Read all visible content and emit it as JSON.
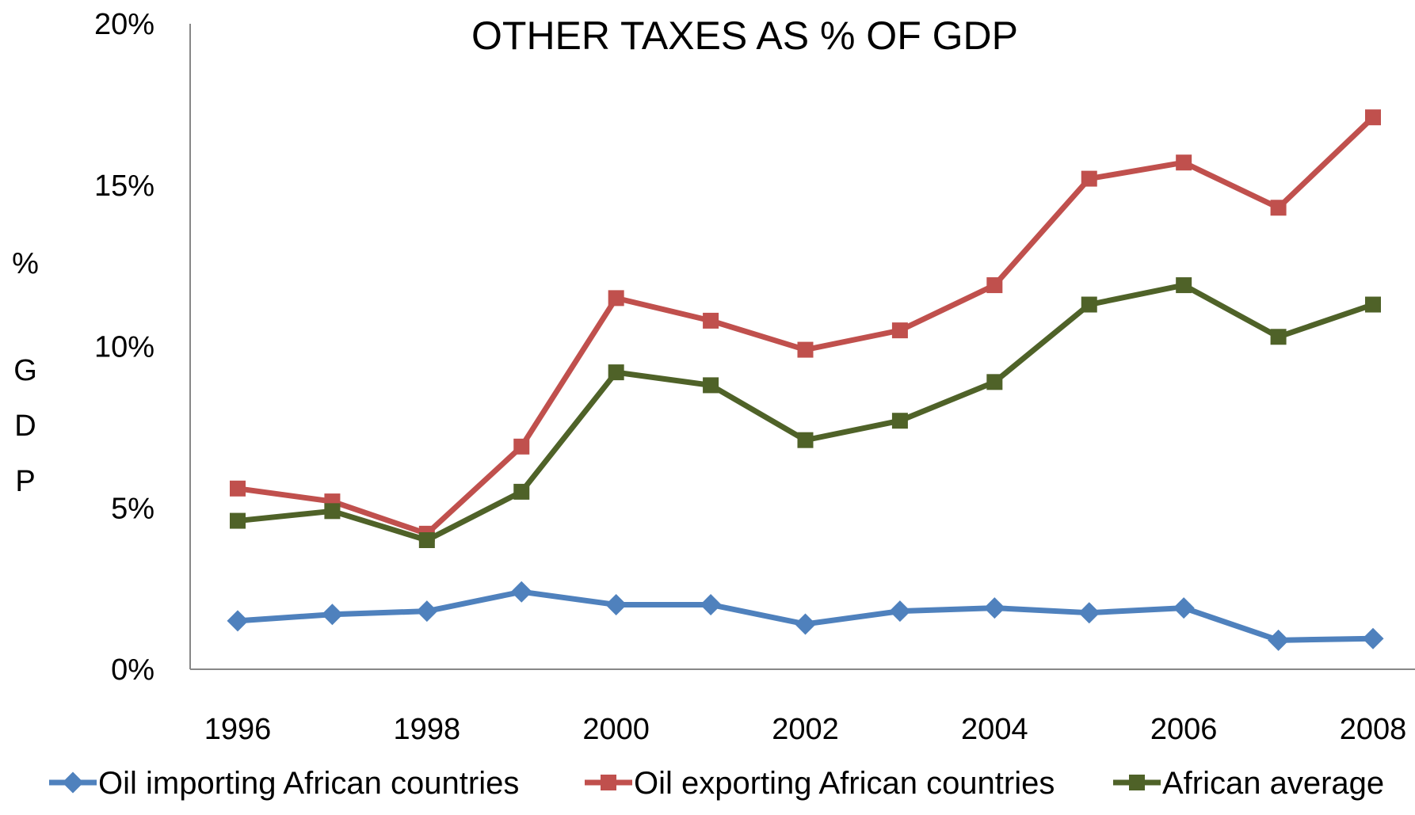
{
  "chart_data": {
    "type": "line",
    "title": "OTHER TAXES AS % OF GDP",
    "xlabel": "",
    "ylabel": "% GDP",
    "ylabel_chars": [
      "%",
      "G",
      "D",
      "P"
    ],
    "x": [
      1996,
      1997,
      1998,
      1999,
      2000,
      2001,
      2002,
      2003,
      2004,
      2005,
      2006,
      2007,
      2008
    ],
    "x_tick_labels": [
      "1996",
      "1998",
      "2000",
      "2002",
      "2004",
      "2006",
      "2008"
    ],
    "x_tick_values": [
      1996,
      1998,
      2000,
      2002,
      2004,
      2006,
      2008
    ],
    "y_tick_labels": [
      "0%",
      "5%",
      "10%",
      "15%",
      "20%"
    ],
    "y_tick_values": [
      0,
      5,
      10,
      15,
      20
    ],
    "xlim": [
      1995.5,
      2008.5
    ],
    "ylim": [
      0,
      20
    ],
    "grid": false,
    "legend_position": "bottom",
    "series": [
      {
        "name": "Oil importing African countries",
        "color": "#4F81BD",
        "marker": "diamond",
        "values": [
          1.5,
          1.7,
          1.8,
          2.4,
          2.0,
          2.0,
          1.4,
          1.8,
          1.9,
          1.75,
          1.9,
          0.9,
          0.95
        ]
      },
      {
        "name": "Oil exporting African countries",
        "color": "#C0504D",
        "marker": "square",
        "values": [
          5.6,
          5.2,
          4.2,
          6.9,
          11.5,
          10.8,
          9.9,
          10.5,
          11.9,
          15.2,
          15.7,
          14.3,
          17.1
        ]
      },
      {
        "name": "African average",
        "color": "#4F6228",
        "marker": "square",
        "values": [
          4.6,
          4.9,
          4.0,
          5.5,
          9.2,
          8.8,
          7.1,
          7.7,
          8.9,
          11.3,
          11.9,
          10.3,
          11.3
        ]
      }
    ]
  }
}
